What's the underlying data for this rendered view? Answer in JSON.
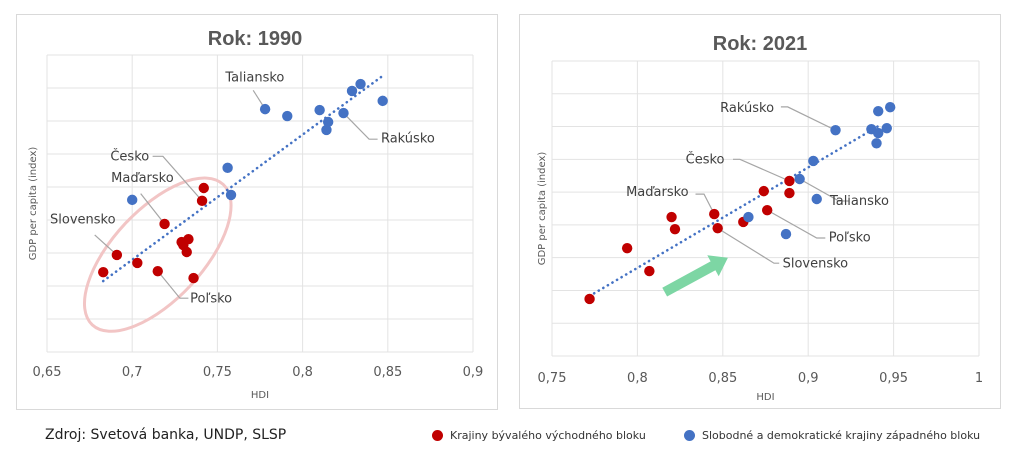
{
  "colors": {
    "east": "#c00000",
    "west": "#4472c4",
    "trend": "#4472c4",
    "ellipse": "#f2c5c5",
    "arrow": "#7dd6a4",
    "text": "#595959"
  },
  "footer": {
    "source": "Zdroj: Svetová banka, UNDP, SLSP"
  },
  "legend": {
    "east_label": "Krajiny bývalého východného bloku",
    "west_label": "Slobodné a demokratické krajiny západného bloku"
  },
  "chart_data": [
    {
      "type": "scatter",
      "title": "Rok: 1990",
      "xlabel": "HDI",
      "ylabel": "GDP per capita (index)",
      "xlim": [
        0.65,
        0.9
      ],
      "ylim": [
        0,
        9
      ],
      "xticks": [
        0.65,
        0.7,
        0.75,
        0.8,
        0.85,
        0.9
      ],
      "xtick_labels": [
        "0,65",
        "0,7",
        "0,75",
        "0,8",
        "0,85",
        "0,9"
      ],
      "grid": true,
      "series": [
        {
          "name": "Krajiny bývalého východného bloku",
          "color_key": "east",
          "points": [
            {
              "x": 0.683,
              "y": 2.42
            },
            {
              "x": 0.691,
              "y": 2.94,
              "label": "Slovensko"
            },
            {
              "x": 0.703,
              "y": 2.7
            },
            {
              "x": 0.715,
              "y": 2.45,
              "label": "Poľsko"
            },
            {
              "x": 0.719,
              "y": 3.88,
              "label": "Maďarsko"
            },
            {
              "x": 0.729,
              "y": 3.33
            },
            {
              "x": 0.73,
              "y": 3.24
            },
            {
              "x": 0.733,
              "y": 3.42
            },
            {
              "x": 0.732,
              "y": 3.03
            },
            {
              "x": 0.736,
              "y": 2.24
            },
            {
              "x": 0.741,
              "y": 4.58,
              "label": "Česko"
            },
            {
              "x": 0.742,
              "y": 4.97
            }
          ]
        },
        {
          "name": "Slobodné a demokratické krajiny západného bloku",
          "color_key": "west",
          "points": [
            {
              "x": 0.7,
              "y": 4.61
            },
            {
              "x": 0.756,
              "y": 5.58
            },
            {
              "x": 0.758,
              "y": 4.76
            },
            {
              "x": 0.778,
              "y": 7.36,
              "label": "Taliansko"
            },
            {
              "x": 0.791,
              "y": 7.15
            },
            {
              "x": 0.81,
              "y": 7.33
            },
            {
              "x": 0.815,
              "y": 6.97
            },
            {
              "x": 0.814,
              "y": 6.73
            },
            {
              "x": 0.824,
              "y": 7.24,
              "label": "Rakúsko"
            },
            {
              "x": 0.829,
              "y": 7.91
            },
            {
              "x": 0.834,
              "y": 8.12
            },
            {
              "x": 0.847,
              "y": 7.61
            }
          ]
        }
      ],
      "trendline": {
        "x1": 0.683,
        "y1": 2.15,
        "x2": 0.846,
        "y2": 8.33
      },
      "annotations": {
        "labels": [
          {
            "text": "Taliansko",
            "tx": 0.772,
            "ty": 8.2,
            "anchor": "middle",
            "path": [
              [
                0.771,
                7.93
              ],
              [
                0.778,
                7.36
              ]
            ]
          },
          {
            "text": "Rakúsko",
            "tx": 0.846,
            "ty": 6.35,
            "anchor": "start",
            "path": [
              [
                0.824,
                7.24
              ],
              [
                0.839,
                6.45
              ],
              [
                0.844,
                6.45
              ]
            ]
          },
          {
            "text": "Česko",
            "tx": 0.71,
            "ty": 5.8,
            "anchor": "end",
            "path": [
              [
                0.712,
                5.93
              ],
              [
                0.718,
                5.93
              ],
              [
                0.741,
                4.58
              ]
            ]
          },
          {
            "text": "Maďarsko",
            "tx": 0.706,
            "ty": 5.15,
            "anchor": "middle",
            "path": [
              [
                0.705,
                4.8
              ],
              [
                0.719,
                3.88
              ]
            ]
          },
          {
            "text": "Slovensko",
            "tx": 0.671,
            "ty": 3.9,
            "anchor": "middle",
            "path": [
              [
                0.678,
                3.55
              ],
              [
                0.691,
                2.94
              ]
            ]
          },
          {
            "text": "Poľsko",
            "tx": 0.734,
            "ty": 1.5,
            "anchor": "start",
            "path": [
              [
                0.715,
                2.45
              ],
              [
                0.728,
                1.63
              ],
              [
                0.733,
                1.63
              ]
            ]
          }
        ],
        "ellipse": {
          "cx": 0.715,
          "cy": 2.95,
          "note": "highlight of eastern bloc cluster"
        }
      }
    },
    {
      "type": "scatter",
      "title": "Rok: 2021",
      "xlabel": "HDI",
      "ylabel": "GDP per capita (index)",
      "xlim": [
        0.75,
        1.0
      ],
      "ylim": [
        0,
        9
      ],
      "xticks": [
        0.75,
        0.8,
        0.85,
        0.9,
        0.95,
        1.0
      ],
      "xtick_labels": [
        "0,75",
        "0,8",
        "0,85",
        "0,9",
        "0,95",
        "1"
      ],
      "grid": true,
      "series": [
        {
          "name": "Krajiny bývalého východného bloku",
          "color_key": "east",
          "points": [
            {
              "x": 0.772,
              "y": 1.74
            },
            {
              "x": 0.794,
              "y": 3.29
            },
            {
              "x": 0.807,
              "y": 2.59
            },
            {
              "x": 0.82,
              "y": 4.24
            },
            {
              "x": 0.822,
              "y": 3.87
            },
            {
              "x": 0.845,
              "y": 4.33,
              "label": "Maďarsko"
            },
            {
              "x": 0.847,
              "y": 3.9,
              "label": "Slovensko"
            },
            {
              "x": 0.862,
              "y": 4.09
            },
            {
              "x": 0.874,
              "y": 5.03
            },
            {
              "x": 0.876,
              "y": 4.45,
              "label": "Poľsko"
            },
            {
              "x": 0.889,
              "y": 5.34,
              "label": "Česko"
            },
            {
              "x": 0.889,
              "y": 4.97
            }
          ]
        },
        {
          "name": "Slobodné a demokratické krajiny západného bloku",
          "color_key": "west",
          "points": [
            {
              "x": 0.865,
              "y": 4.24
            },
            {
              "x": 0.887,
              "y": 3.72
            },
            {
              "x": 0.895,
              "y": 5.4,
              "label": "Taliansko"
            },
            {
              "x": 0.903,
              "y": 5.95
            },
            {
              "x": 0.905,
              "y": 4.79
            },
            {
              "x": 0.916,
              "y": 6.89,
              "label": "Rakúsko"
            },
            {
              "x": 0.937,
              "y": 6.92
            },
            {
              "x": 0.94,
              "y": 6.49
            },
            {
              "x": 0.941,
              "y": 6.8
            },
            {
              "x": 0.946,
              "y": 6.95
            },
            {
              "x": 0.941,
              "y": 7.47
            },
            {
              "x": 0.948,
              "y": 7.59
            }
          ]
        }
      ],
      "trendline": {
        "x1": 0.772,
        "y1": 1.83,
        "x2": 0.941,
        "y2": 7.01
      },
      "annotations": {
        "labels": [
          {
            "text": "Rakúsko",
            "tx": 0.88,
            "ty": 7.45,
            "anchor": "end",
            "path": [
              [
                0.884,
                7.6
              ],
              [
                0.888,
                7.6
              ],
              [
                0.916,
                6.89
              ]
            ]
          },
          {
            "text": "Česko",
            "tx": 0.851,
            "ty": 5.88,
            "anchor": "end",
            "path": [
              [
                0.856,
                6.0
              ],
              [
                0.86,
                6.0
              ],
              [
                0.889,
                5.34
              ]
            ]
          },
          {
            "text": "Taliansko",
            "tx": 0.93,
            "ty": 4.6,
            "anchor": "middle",
            "path": [
              [
                0.895,
                5.4
              ],
              [
                0.918,
                4.73
              ],
              [
                0.924,
                4.73
              ]
            ]
          },
          {
            "text": "Poľsko",
            "tx": 0.912,
            "ty": 3.5,
            "anchor": "start",
            "path": [
              [
                0.876,
                4.45
              ],
              [
                0.905,
                3.6
              ],
              [
                0.91,
                3.6
              ]
            ]
          },
          {
            "text": "Slovensko",
            "tx": 0.885,
            "ty": 2.7,
            "anchor": "start",
            "path": [
              [
                0.847,
                3.9
              ],
              [
                0.88,
                2.83
              ],
              [
                0.883,
                2.83
              ]
            ]
          },
          {
            "text": "Maďarsko",
            "tx": 0.83,
            "ty": 4.88,
            "anchor": "end",
            "path": [
              [
                0.834,
                4.94
              ],
              [
                0.839,
                4.94
              ],
              [
                0.845,
                4.33
              ]
            ]
          }
        ],
        "arrow": {
          "from": [
            0.816,
            1.95
          ],
          "to": [
            0.853,
            3.0
          ],
          "note": "upward trend highlight"
        }
      }
    }
  ]
}
